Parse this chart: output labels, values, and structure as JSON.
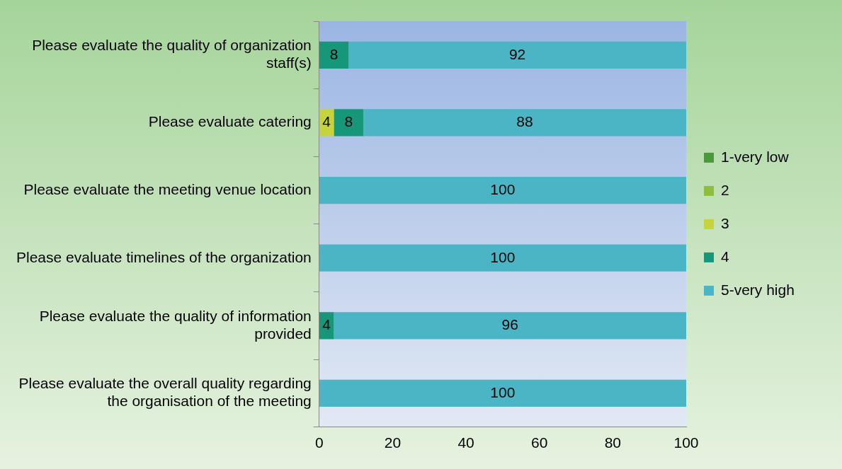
{
  "chart_data": {
    "type": "bar",
    "orientation": "horizontal",
    "stacked": true,
    "categories": [
      "Please evaluate the quality of organization staff(s)",
      "Please evaluate catering",
      "Please evaluate the meeting venue location",
      "Please evaluate timelines of the organization",
      "Please evaluate the quality of information provided",
      "Please evaluate the overall quality regarding the organisation of the meeting"
    ],
    "series": [
      {
        "name": "1-very low",
        "color": "#4a9a3c",
        "values": [
          null,
          null,
          null,
          null,
          null,
          null
        ]
      },
      {
        "name": "2",
        "color": "#8dbf3c",
        "values": [
          null,
          null,
          null,
          null,
          null,
          null
        ]
      },
      {
        "name": "3",
        "color": "#c5d43c",
        "values": [
          null,
          4,
          null,
          null,
          null,
          null
        ]
      },
      {
        "name": "4",
        "color": "#17977a",
        "values": [
          8,
          8,
          null,
          null,
          4,
          null
        ]
      },
      {
        "name": "5-very high",
        "color": "#4bb5c6",
        "values": [
          92,
          88,
          100,
          100,
          96,
          100
        ]
      }
    ],
    "xlim": [
      0,
      100
    ],
    "xticks": [
      0,
      20,
      40,
      60,
      80,
      100
    ],
    "grid": false,
    "legend": "right",
    "data_labels": true
  }
}
